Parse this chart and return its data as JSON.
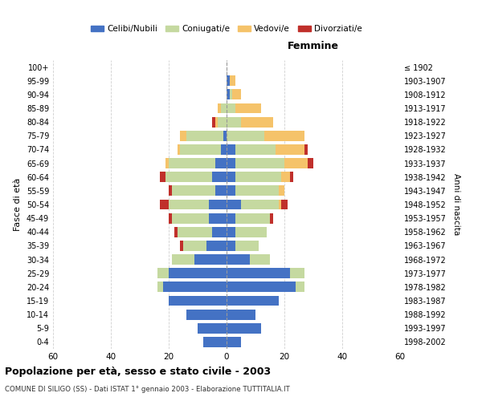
{
  "age_groups": [
    "0-4",
    "5-9",
    "10-14",
    "15-19",
    "20-24",
    "25-29",
    "30-34",
    "35-39",
    "40-44",
    "45-49",
    "50-54",
    "55-59",
    "60-64",
    "65-69",
    "70-74",
    "75-79",
    "80-84",
    "85-89",
    "90-94",
    "95-99",
    "100+"
  ],
  "birth_years": [
    "1998-2002",
    "1993-1997",
    "1988-1992",
    "1983-1987",
    "1978-1982",
    "1973-1977",
    "1968-1972",
    "1963-1967",
    "1958-1962",
    "1953-1957",
    "1948-1952",
    "1943-1947",
    "1938-1942",
    "1933-1937",
    "1928-1932",
    "1923-1927",
    "1918-1922",
    "1913-1917",
    "1908-1912",
    "1903-1907",
    "≤ 1902"
  ],
  "male": {
    "celibi": [
      8,
      10,
      14,
      20,
      22,
      20,
      11,
      7,
      5,
      6,
      6,
      4,
      5,
      4,
      2,
      1,
      0,
      0,
      0,
      0,
      0
    ],
    "coniugati": [
      0,
      0,
      0,
      0,
      2,
      4,
      8,
      8,
      12,
      13,
      14,
      15,
      16,
      16,
      14,
      13,
      3,
      2,
      0,
      0,
      0
    ],
    "vedovi": [
      0,
      0,
      0,
      0,
      0,
      0,
      0,
      0,
      0,
      0,
      0,
      0,
      0,
      1,
      1,
      2,
      1,
      1,
      0,
      0,
      0
    ],
    "divorziati": [
      0,
      0,
      0,
      0,
      0,
      0,
      0,
      1,
      1,
      1,
      3,
      1,
      2,
      0,
      0,
      0,
      1,
      0,
      0,
      0,
      0
    ]
  },
  "female": {
    "nubili": [
      5,
      12,
      10,
      18,
      24,
      22,
      8,
      3,
      3,
      3,
      5,
      3,
      3,
      3,
      3,
      0,
      0,
      0,
      1,
      1,
      0
    ],
    "coniugate": [
      0,
      0,
      0,
      0,
      3,
      5,
      7,
      8,
      11,
      12,
      13,
      15,
      16,
      17,
      14,
      13,
      5,
      3,
      1,
      0,
      0
    ],
    "vedove": [
      0,
      0,
      0,
      0,
      0,
      0,
      0,
      0,
      0,
      0,
      1,
      2,
      3,
      8,
      10,
      14,
      11,
      9,
      3,
      2,
      0
    ],
    "divorziate": [
      0,
      0,
      0,
      0,
      0,
      0,
      0,
      0,
      0,
      1,
      2,
      0,
      1,
      2,
      1,
      0,
      0,
      0,
      0,
      0,
      0
    ]
  },
  "colors": {
    "celibi": "#4472C4",
    "coniugati": "#C5D9A0",
    "vedovi": "#F5C36A",
    "divorziati": "#C0302B"
  },
  "xlim": 60,
  "title": "Popolazione per età, sesso e stato civile - 2003",
  "subtitle": "COMUNE DI SILIGO (SS) - Dati ISTAT 1° gennaio 2003 - Elaborazione TUTTITALIA.IT",
  "ylabel_left": "Fasce di età",
  "ylabel_right": "Anni di nascita",
  "xlabel_femmine": "Femmine",
  "legend_labels": [
    "Celibi/Nubili",
    "Coniugati/e",
    "Vedovi/e",
    "Divorziati/e"
  ],
  "bg_color": "#ffffff",
  "bar_height": 0.75
}
